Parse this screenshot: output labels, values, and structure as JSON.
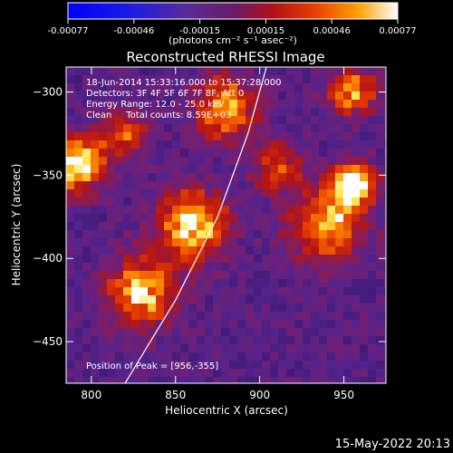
{
  "colorbar": {
    "ticks": [
      "-0.00077",
      "-0.00046",
      "-0.00015",
      "0.00015",
      "0.00046",
      "0.00077"
    ],
    "units_label": "(photons cm⁻² s⁻¹ asec⁻²)",
    "range": [
      -0.00077,
      0.00077
    ]
  },
  "chart_data": {
    "type": "heatmap",
    "title": "Reconstructed RHESSI Image",
    "xlabel": "Heliocentric X (arcsec)",
    "ylabel": "Heliocentric Y (arcsec)",
    "xlim": [
      785,
      975
    ],
    "ylim": [
      -475,
      -285
    ],
    "x_ticks": [
      800,
      850,
      900,
      950
    ],
    "y_ticks": [
      -300,
      -350,
      -400,
      -450
    ],
    "x_tick_labels": [
      "800",
      "850",
      "900",
      "950"
    ],
    "y_tick_labels": [
      "−300",
      "−350",
      "−400",
      "−450"
    ],
    "annotations": [
      "18-Jun-2014 15:33:16.000 to 15:37:28.000",
      "Detectors: 3F 4F 5F 6F 7F 8F, Att 0",
      "Energy Range: 12.0 - 25.0 keV",
      "Clean     Total counts: 8.59E+03"
    ],
    "peak_text": "Position of Peak = [956,-355]",
    "peak": [
      956,
      -355
    ],
    "limb_points": [
      [
        820,
        -475
      ],
      [
        850,
        -425
      ],
      [
        875,
        -375
      ],
      [
        893,
        -325
      ],
      [
        904,
        -285
      ]
    ],
    "bright_sources": [
      {
        "x": 956,
        "y": -355,
        "intensity": 1.0,
        "radius": 12
      },
      {
        "x": 791,
        "y": -343,
        "intensity": 0.85,
        "radius": 16
      },
      {
        "x": 860,
        "y": -380,
        "intensity": 0.75,
        "radius": 20
      },
      {
        "x": 830,
        "y": -420,
        "intensity": 0.7,
        "radius": 20
      },
      {
        "x": 880,
        "y": -310,
        "intensity": 0.65,
        "radius": 18
      },
      {
        "x": 940,
        "y": -380,
        "intensity": 0.6,
        "radius": 22
      },
      {
        "x": 955,
        "y": -300,
        "intensity": 0.6,
        "radius": 14
      },
      {
        "x": 820,
        "y": -325,
        "intensity": 0.5,
        "radius": 14
      },
      {
        "x": 910,
        "y": -345,
        "intensity": 0.45,
        "radius": 14
      }
    ]
  },
  "footer": {
    "timestamp": "15-May-2022 20:13"
  }
}
